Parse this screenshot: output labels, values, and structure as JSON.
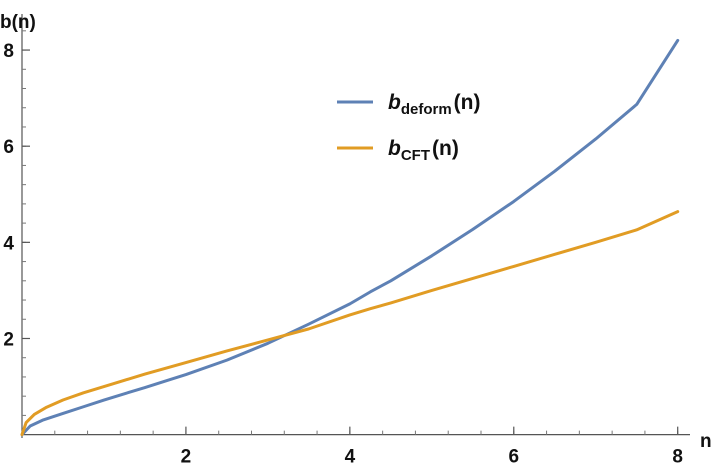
{
  "chart_data": {
    "type": "line",
    "title": "",
    "xlabel": "n",
    "ylabel": "b(n)",
    "xlim": [
      0,
      8.15
    ],
    "ylim": [
      -0.07,
      8.75
    ],
    "x_ticks": [
      2,
      4,
      6,
      8
    ],
    "y_ticks": [
      2,
      4,
      6,
      8
    ],
    "x_tick_labels": [
      "2",
      "4",
      "6",
      "8"
    ],
    "y_tick_labels": [
      "2",
      "4",
      "6",
      "8"
    ],
    "x_minor_step": 0.4,
    "y_minor_step": 0.4,
    "grid": false,
    "legend_position": "top-center",
    "series": [
      {
        "name": "b_deform(n)",
        "legend_base": "b",
        "legend_sub": "deform",
        "legend_arg": "(n)",
        "color": "#5e81b5",
        "x": [
          0,
          0.1,
          0.25,
          0.5,
          0.75,
          1,
          1.5,
          2,
          2.5,
          3,
          3.5,
          4,
          4.25,
          4.5,
          5,
          5.5,
          6,
          6.5,
          7,
          7.5,
          8
        ],
        "y": [
          0,
          0.18,
          0.3,
          0.44,
          0.58,
          0.72,
          0.98,
          1.25,
          1.55,
          1.9,
          2.3,
          2.72,
          2.97,
          3.2,
          3.72,
          4.27,
          4.85,
          5.48,
          6.15,
          6.87,
          8.2
        ]
      },
      {
        "name": "b_CFT(n)",
        "legend_base": "b",
        "legend_sub": "CFT",
        "legend_arg": "(n)",
        "color": "#e19c24",
        "x": [
          0,
          0.05,
          0.15,
          0.3,
          0.5,
          0.75,
          1,
          1.5,
          2,
          2.5,
          3,
          3.5,
          4,
          4.25,
          4.5,
          5,
          5.5,
          6,
          6.5,
          7,
          7.5,
          8
        ],
        "y": [
          0,
          0.25,
          0.42,
          0.57,
          0.72,
          0.87,
          1.0,
          1.26,
          1.5,
          1.74,
          1.97,
          2.2,
          2.49,
          2.62,
          2.74,
          3.0,
          3.25,
          3.5,
          3.75,
          4.0,
          4.26,
          4.64
        ]
      }
    ]
  }
}
